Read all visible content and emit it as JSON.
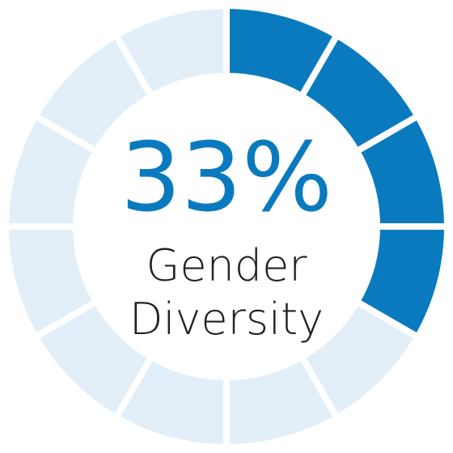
{
  "chart_data": {
    "type": "segmented-donut",
    "value": 33,
    "value_label": "33%",
    "max": 100,
    "label": "Gender Diversity",
    "segments": 12,
    "color": "#0a7abf",
    "track_color": "#e2eff8"
  }
}
